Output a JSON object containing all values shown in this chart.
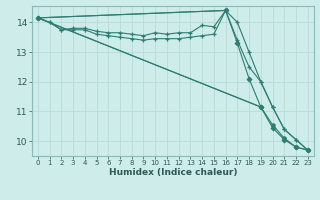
{
  "xlabel": "Humidex (Indice chaleur)",
  "bg_color": "#cdecea",
  "line_color": "#2e7d72",
  "grid_color": "#b8dbd8",
  "xlim": [
    -0.5,
    23.5
  ],
  "ylim": [
    9.5,
    14.55
  ],
  "yticks": [
    10,
    11,
    12,
    13,
    14
  ],
  "xticks": [
    0,
    1,
    2,
    3,
    4,
    5,
    6,
    7,
    8,
    9,
    10,
    11,
    12,
    13,
    14,
    15,
    16,
    17,
    18,
    19,
    20,
    21,
    22,
    23
  ],
  "series": [
    {
      "x": [
        0,
        1,
        2,
        3,
        4,
        5,
        6,
        7,
        8,
        9,
        10,
        11,
        12,
        13,
        14,
        15,
        16,
        17,
        18,
        19,
        20,
        21,
        22,
        23
      ],
      "y": [
        14.15,
        14.0,
        13.75,
        13.8,
        13.8,
        13.7,
        13.65,
        13.65,
        13.6,
        13.55,
        13.65,
        13.6,
        13.65,
        13.65,
        13.9,
        13.85,
        14.4,
        14.0,
        13.0,
        12.0,
        11.15,
        10.4,
        10.05,
        9.7
      ],
      "marker": "+"
    },
    {
      "x": [
        0,
        1,
        2,
        3,
        4,
        5,
        6,
        7,
        8,
        9,
        10,
        11,
        12,
        13,
        14,
        15,
        16,
        17,
        18,
        19,
        20,
        21,
        22,
        23
      ],
      "y": [
        14.15,
        14.0,
        13.75,
        13.75,
        13.75,
        13.6,
        13.55,
        13.5,
        13.45,
        13.4,
        13.45,
        13.45,
        13.45,
        13.5,
        13.55,
        13.6,
        14.4,
        13.4,
        12.5,
        12.0,
        11.15,
        10.4,
        10.05,
        9.7
      ],
      "marker": "+"
    },
    {
      "x": [
        0,
        16,
        17,
        18,
        19,
        20,
        21,
        22,
        23
      ],
      "y": [
        14.15,
        14.4,
        13.3,
        12.1,
        11.15,
        10.45,
        10.05,
        9.8,
        9.7
      ],
      "marker": "D"
    },
    {
      "x": [
        0,
        19,
        20,
        21,
        22,
        23
      ],
      "y": [
        14.15,
        11.15,
        10.55,
        10.1,
        9.8,
        9.7
      ],
      "marker": "o"
    }
  ]
}
